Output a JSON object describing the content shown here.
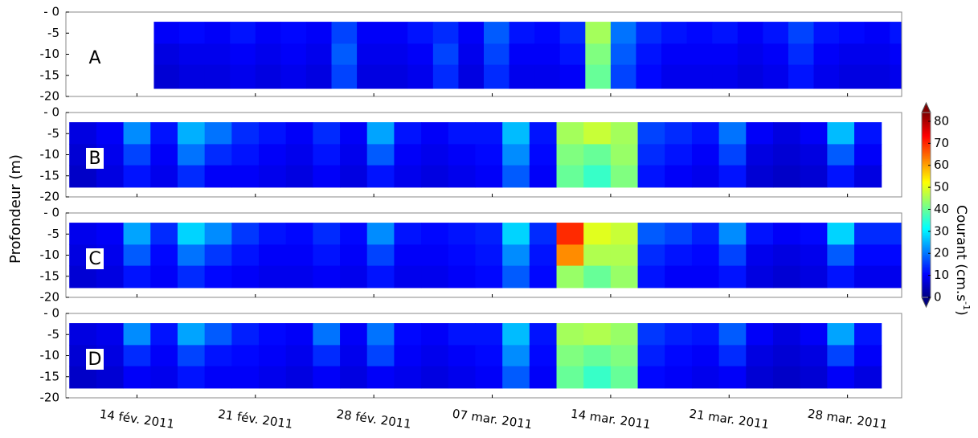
{
  "chart_data": {
    "type": "heatmap",
    "y_label": "Profondeur (m)",
    "ylim": [
      -20,
      0
    ],
    "yticks": [
      {
        "value": 0,
        "label": "- 0"
      },
      -5,
      -10,
      -15,
      -20
    ],
    "xlim": [
      40.8,
      90.2
    ],
    "xticks": [
      {
        "value": 45,
        "label": "14 fév. 2011"
      },
      {
        "value": 52,
        "label": "21 fév. 2011"
      },
      {
        "value": 59,
        "label": "28 fév. 2011"
      },
      {
        "value": 66,
        "label": "07 mar. 2011"
      },
      {
        "value": 73,
        "label": "14 mar. 2011"
      },
      {
        "value": 80,
        "label": "21 mar. 2011"
      },
      {
        "value": 87,
        "label": "28 mar. 2011"
      }
    ],
    "colorbar": {
      "label_parts": [
        "Courant (cm.s",
        "-1",
        ")"
      ],
      "colormap": "jet",
      "clim": [
        0,
        84
      ],
      "ticks": [
        0,
        10,
        20,
        30,
        40,
        50,
        60,
        70,
        80
      ]
    },
    "panels": [
      {
        "label": "A",
        "xbins": [
          46,
          47.5,
          49,
          50.5,
          52,
          53.5,
          55,
          56.5,
          58,
          59.5,
          61,
          62.5,
          64,
          65.5,
          67,
          68.5,
          70,
          71.5,
          73,
          74.5,
          76,
          77.5,
          79,
          80.5,
          82,
          83.5,
          85,
          86.5,
          88,
          89.5,
          90.2
        ],
        "ybins": [
          -2.3,
          -7.5,
          -12.5,
          -18.1
        ],
        "values": [
          [
            10,
            11,
            10,
            12,
            10,
            11,
            10,
            16,
            10,
            10,
            12,
            14,
            10,
            18,
            12,
            11,
            14,
            45,
            20,
            14,
            12,
            11,
            12,
            10,
            12,
            16,
            12,
            11,
            10,
            12
          ],
          [
            8,
            9,
            9,
            10,
            9,
            10,
            9,
            18,
            9,
            9,
            10,
            16,
            9,
            16,
            10,
            10,
            12,
            42,
            18,
            12,
            10,
            10,
            10,
            9,
            10,
            14,
            10,
            9,
            9,
            10
          ],
          [
            7,
            8,
            8,
            9,
            8,
            9,
            8,
            16,
            8,
            8,
            9,
            14,
            8,
            14,
            9,
            9,
            10,
            40,
            16,
            11,
            9,
            9,
            9,
            8,
            9,
            12,
            9,
            8,
            8,
            9
          ]
        ]
      },
      {
        "label": "B",
        "xbins": [
          41,
          42.6,
          44.2,
          45.8,
          47.4,
          49,
          50.6,
          52.2,
          53.8,
          55.4,
          57,
          58.6,
          60.2,
          61.8,
          63.4,
          65,
          66.6,
          68.2,
          69.8,
          71.4,
          73,
          74.6,
          76.2,
          77.8,
          79.4,
          81,
          82.6,
          84.2,
          85.8,
          87.4,
          89
        ],
        "ybins": [
          -2.3,
          -7.5,
          -12.5,
          -17.7
        ],
        "values": [
          [
            8,
            10,
            22,
            12,
            25,
            20,
            14,
            12,
            10,
            14,
            10,
            24,
            12,
            10,
            12,
            12,
            26,
            12,
            45,
            48,
            45,
            16,
            14,
            12,
            20,
            10,
            8,
            10,
            26,
            12
          ],
          [
            7,
            9,
            16,
            10,
            20,
            14,
            12,
            10,
            9,
            12,
            9,
            18,
            10,
            9,
            10,
            11,
            22,
            11,
            42,
            40,
            44,
            14,
            12,
            10,
            16,
            8,
            7,
            8,
            18,
            10
          ],
          [
            6,
            8,
            12,
            9,
            14,
            10,
            10,
            9,
            8,
            10,
            8,
            12,
            9,
            8,
            9,
            10,
            18,
            10,
            40,
            36,
            42,
            12,
            10,
            9,
            12,
            7,
            6,
            7,
            12,
            8
          ]
        ]
      },
      {
        "label": "C",
        "xbins": [
          41,
          42.6,
          44.2,
          45.8,
          47.4,
          49,
          50.6,
          52.2,
          53.8,
          55.4,
          57,
          58.6,
          60.2,
          61.8,
          63.4,
          65,
          66.6,
          68.2,
          69.8,
          71.4,
          73,
          74.6,
          76.2,
          77.8,
          79.4,
          81,
          82.6,
          84.2,
          85.8,
          87.4,
          90.2
        ],
        "ybins": [
          -2.3,
          -7.5,
          -12.5,
          -17.7
        ],
        "values": [
          [
            9,
            10,
            24,
            14,
            28,
            22,
            15,
            12,
            11,
            14,
            11,
            22,
            12,
            11,
            12,
            13,
            28,
            14,
            70,
            50,
            48,
            18,
            16,
            13,
            22,
            12,
            10,
            11,
            28,
            14
          ],
          [
            8,
            9,
            18,
            11,
            20,
            15,
            12,
            10,
            10,
            12,
            10,
            16,
            10,
            10,
            11,
            12,
            22,
            12,
            62,
            46,
            46,
            14,
            12,
            11,
            16,
            9,
            8,
            9,
            18,
            11
          ],
          [
            7,
            8,
            12,
            10,
            14,
            11,
            10,
            9,
            9,
            10,
            9,
            12,
            9,
            9,
            10,
            11,
            18,
            11,
            44,
            40,
            44,
            12,
            10,
            10,
            12,
            8,
            7,
            8,
            12,
            9
          ]
        ]
      },
      {
        "label": "D",
        "xbins": [
          41,
          42.6,
          44.2,
          45.8,
          47.4,
          49,
          50.6,
          52.2,
          53.8,
          55.4,
          57,
          58.6,
          60.2,
          61.8,
          63.4,
          65,
          66.6,
          68.2,
          69.8,
          71.4,
          73,
          74.6,
          76.2,
          77.8,
          79.4,
          81,
          82.6,
          84.2,
          85.8,
          87.4,
          89
        ],
        "ybins": [
          -2.3,
          -7.5,
          -12.5,
          -17.7
        ],
        "values": [
          [
            8,
            9,
            22,
            12,
            24,
            18,
            13,
            11,
            10,
            20,
            10,
            20,
            11,
            10,
            12,
            12,
            26,
            12,
            45,
            46,
            44,
            15,
            13,
            12,
            18,
            10,
            8,
            10,
            24,
            12
          ],
          [
            7,
            8,
            14,
            10,
            16,
            12,
            11,
            10,
            9,
            14,
            9,
            16,
            10,
            9,
            10,
            11,
            22,
            11,
            42,
            40,
            42,
            13,
            11,
            10,
            14,
            8,
            7,
            8,
            16,
            10
          ],
          [
            6,
            7,
            10,
            9,
            12,
            10,
            10,
            9,
            8,
            10,
            8,
            10,
            9,
            8,
            9,
            10,
            18,
            10,
            40,
            36,
            40,
            11,
            10,
            9,
            10,
            7,
            6,
            7,
            10,
            8
          ]
        ]
      }
    ]
  }
}
